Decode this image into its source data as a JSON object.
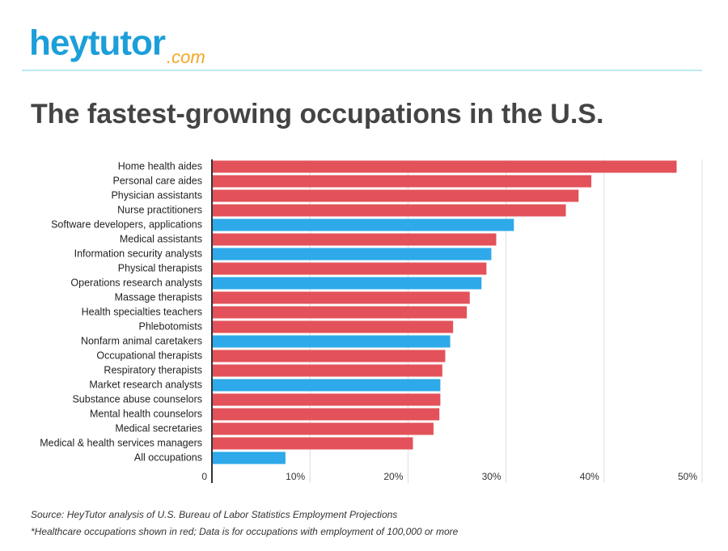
{
  "logo": {
    "text": "heytutor",
    "domain": ".com"
  },
  "chart_data": {
    "type": "bar",
    "orientation": "horizontal",
    "title": "The fastest-growing occupations in the U.S.",
    "categories": [
      "Home health aides",
      "Personal care aides",
      "Physician assistants",
      "Nurse practitioners",
      "Software developers, applications",
      "Medical assistants",
      "Information security analysts",
      "Physical therapists",
      "Operations research analysts",
      "Massage therapists",
      "Health specialties teachers",
      "Phlebotomists",
      "Nonfarm animal caretakers",
      "Occupational therapists",
      "Respiratory therapists",
      "Market research analysts",
      "Substance abuse counselors",
      "Mental health counselors",
      "Medical secretaries",
      "Medical & health services managers",
      "All occupations"
    ],
    "values": [
      47.4,
      38.7,
      37.4,
      36.1,
      30.8,
      29.0,
      28.5,
      28.0,
      27.5,
      26.3,
      26.0,
      24.6,
      24.3,
      23.8,
      23.5,
      23.3,
      23.3,
      23.2,
      22.6,
      20.5,
      7.5
    ],
    "colors": [
      "#e3525a",
      "#e3525a",
      "#e3525a",
      "#e3525a",
      "#2ea9ea",
      "#e3525a",
      "#2ea9ea",
      "#e3525a",
      "#2ea9ea",
      "#e3525a",
      "#e3525a",
      "#e3525a",
      "#2ea9ea",
      "#e3525a",
      "#e3525a",
      "#2ea9ea",
      "#e3525a",
      "#e3525a",
      "#e3525a",
      "#e3525a",
      "#2ea9ea"
    ],
    "xlim": [
      0,
      50
    ],
    "xticks": [
      0,
      {
        "value": 10,
        "label": "10%"
      },
      {
        "value": 20,
        "label": "20%"
      },
      {
        "value": 30,
        "label": "30%"
      },
      {
        "value": 40,
        "label": "40%"
      },
      {
        "value": 50,
        "label": "50%"
      }
    ],
    "grid": true,
    "notes": [
      "Source: HeyTutor analysis of U.S. Bureau of Labor Statistics Employment Projections",
      "*Healthcare occupations shown in red; Data is for occupations with employment of 100,000 or more"
    ]
  }
}
